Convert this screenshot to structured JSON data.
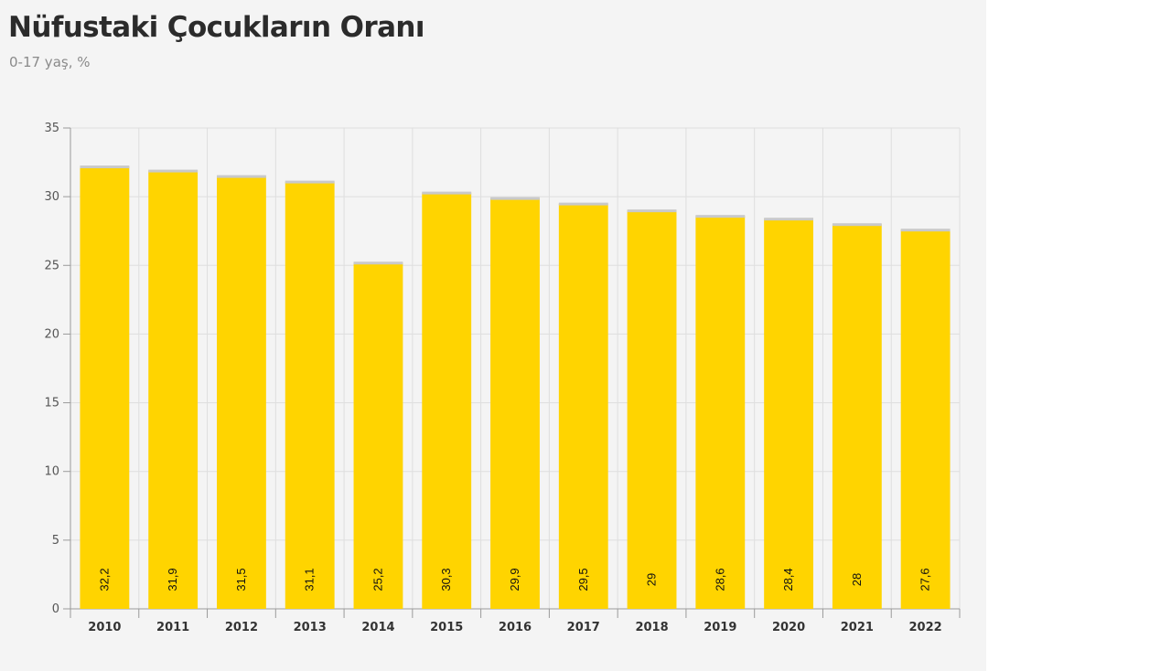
{
  "chart_data": {
    "type": "bar",
    "title": "Nüfustaki Çocukların Oranı",
    "subtitle": "0-17 yaş, %",
    "categories": [
      "2010",
      "2011",
      "2012",
      "2013",
      "2014",
      "2015",
      "2016",
      "2017",
      "2018",
      "2019",
      "2020",
      "2021",
      "2022"
    ],
    "values": [
      32.2,
      31.9,
      31.5,
      31.1,
      25.2,
      30.3,
      29.9,
      29.5,
      29,
      28.6,
      28.4,
      28,
      27.6
    ],
    "data_labels": [
      "32,2",
      "31,9",
      "31,5",
      "31,1",
      "25,2",
      "30,3",
      "29,9",
      "29,5",
      "29",
      "28,6",
      "28,4",
      "28",
      "27,6"
    ],
    "ylim": [
      0,
      35
    ],
    "yticks": [
      0,
      5,
      10,
      15,
      20,
      25,
      30,
      35
    ],
    "grid": true,
    "legend": "none",
    "colors": {
      "bar": "#ffd400",
      "bar_top": "#c9c9c9",
      "grid": "#dedede",
      "axis": "#9a9a9a",
      "panel_background": "#f4f4f4"
    }
  }
}
